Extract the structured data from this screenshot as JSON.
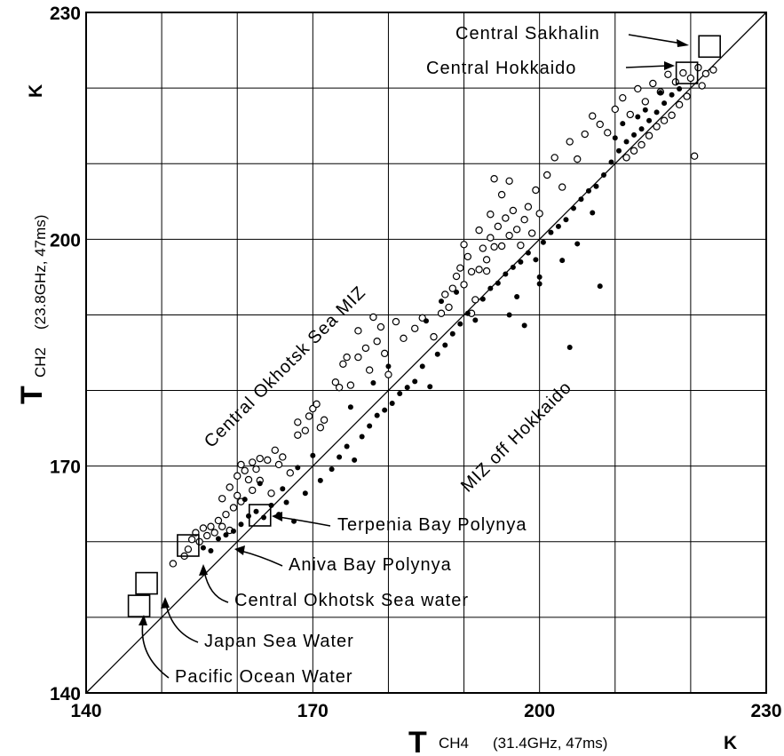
{
  "chart_data": {
    "type": "scatter",
    "xlabel": {
      "symbol": "T",
      "subscript": "CH4",
      "detail": "(31.4GHz, 47ms)",
      "unit": "K"
    },
    "ylabel": {
      "symbol": "T",
      "subscript": "CH2",
      "detail": "(23.8GHz, 47ms)",
      "unit": "K"
    },
    "xlim": [
      140,
      230
    ],
    "ylim": [
      140,
      230
    ],
    "x_ticks": [
      140,
      170,
      200,
      230
    ],
    "y_ticks": [
      140,
      170,
      200,
      230
    ],
    "grid": true,
    "diagonal": {
      "from": [
        140,
        140
      ],
      "to": [
        230,
        230
      ]
    },
    "series": [
      {
        "marker": "open-circle",
        "points": [
          [
            151.5,
            157.1
          ],
          [
            153.0,
            158.1
          ],
          [
            153.5,
            159.0
          ],
          [
            154.0,
            160.3
          ],
          [
            154.5,
            161.2
          ],
          [
            155.0,
            160.0
          ],
          [
            155.5,
            161.8
          ],
          [
            156.0,
            160.8
          ],
          [
            156.5,
            162.0
          ],
          [
            157.0,
            161.2
          ],
          [
            157.5,
            162.8
          ],
          [
            158.0,
            162.0
          ],
          [
            158.5,
            163.6
          ],
          [
            159.0,
            161.5
          ],
          [
            159.5,
            164.5
          ],
          [
            160.0,
            166.1
          ],
          [
            160.0,
            168.7
          ],
          [
            160.5,
            170.2
          ],
          [
            161.0,
            169.4
          ],
          [
            161.5,
            168.2
          ],
          [
            162.0,
            170.5
          ],
          [
            162.5,
            169.6
          ],
          [
            163.0,
            171.0
          ],
          [
            163.0,
            168.1
          ],
          [
            164.0,
            170.8
          ],
          [
            165.0,
            172.1
          ],
          [
            164.5,
            166.4
          ],
          [
            158.0,
            165.7
          ],
          [
            159.0,
            167.2
          ],
          [
            160.5,
            165.3
          ],
          [
            162.0,
            166.8
          ],
          [
            165.5,
            170.2
          ],
          [
            166.0,
            171.2
          ],
          [
            167.0,
            169.1
          ],
          [
            168.0,
            175.8
          ],
          [
            168.0,
            174.1
          ],
          [
            169.0,
            174.7
          ],
          [
            169.5,
            176.6
          ],
          [
            170.0,
            177.6
          ],
          [
            170.5,
            178.2
          ],
          [
            171.0,
            175.1
          ],
          [
            171.5,
            176.1
          ],
          [
            173.0,
            181.1
          ],
          [
            173.5,
            180.4
          ],
          [
            174.0,
            183.5
          ],
          [
            174.5,
            184.4
          ],
          [
            175.0,
            180.7
          ],
          [
            176.0,
            184.4
          ],
          [
            176.0,
            187.9
          ],
          [
            177.0,
            185.6
          ],
          [
            177.5,
            182.7
          ],
          [
            178.0,
            189.7
          ],
          [
            178.5,
            186.5
          ],
          [
            179.0,
            188.4
          ],
          [
            179.5,
            184.9
          ],
          [
            180.0,
            182.1
          ],
          [
            181.0,
            189.1
          ],
          [
            182.0,
            186.9
          ],
          [
            183.5,
            188.2
          ],
          [
            184.5,
            189.6
          ],
          [
            186.0,
            187.1
          ],
          [
            187.0,
            190.2
          ],
          [
            187.5,
            192.7
          ],
          [
            188.0,
            191.0
          ],
          [
            188.5,
            193.5
          ],
          [
            189.0,
            195.1
          ],
          [
            189.5,
            196.2
          ],
          [
            190.0,
            194.0
          ],
          [
            190.5,
            197.7
          ],
          [
            191.0,
            195.7
          ],
          [
            191.5,
            192.0
          ],
          [
            192.0,
            196.0
          ],
          [
            192.5,
            198.8
          ],
          [
            193.0,
            197.3
          ],
          [
            193.5,
            200.2
          ],
          [
            194.0,
            199.0
          ],
          [
            194.5,
            201.7
          ],
          [
            195.0,
            199.1
          ],
          [
            195.5,
            202.8
          ],
          [
            196.0,
            200.5
          ],
          [
            196.5,
            203.8
          ],
          [
            197.0,
            201.3
          ],
          [
            197.5,
            199.2
          ],
          [
            198.0,
            202.6
          ],
          [
            198.5,
            204.3
          ],
          [
            199.0,
            200.8
          ],
          [
            199.5,
            206.5
          ],
          [
            200.0,
            203.4
          ],
          [
            194.0,
            208.0
          ],
          [
            195.0,
            205.9
          ],
          [
            196.0,
            207.7
          ],
          [
            193.5,
            203.3
          ],
          [
            192.0,
            201.2
          ],
          [
            190.0,
            199.3
          ],
          [
            191.0,
            190.2
          ],
          [
            193.0,
            195.8
          ],
          [
            201.0,
            208.5
          ],
          [
            202.0,
            210.8
          ],
          [
            203.0,
            206.9
          ],
          [
            204.0,
            212.9
          ],
          [
            205.0,
            210.6
          ],
          [
            206.0,
            213.9
          ],
          [
            207.0,
            216.3
          ],
          [
            208.0,
            215.2
          ],
          [
            209.0,
            214.1
          ],
          [
            210.0,
            217.2
          ],
          [
            211.0,
            218.7
          ],
          [
            212.0,
            216.5
          ],
          [
            213.0,
            219.9
          ],
          [
            214.0,
            218.2
          ],
          [
            215.0,
            220.6
          ],
          [
            216.0,
            219.5
          ],
          [
            217.0,
            221.8
          ],
          [
            218.0,
            220.8
          ],
          [
            219.0,
            222.0
          ],
          [
            220.0,
            221.3
          ],
          [
            221.0,
            222.7
          ],
          [
            222.0,
            221.9
          ],
          [
            223.0,
            222.4
          ],
          [
            221.5,
            220.3
          ],
          [
            219.5,
            218.9
          ],
          [
            218.5,
            217.8
          ],
          [
            217.5,
            216.4
          ],
          [
            216.5,
            215.7
          ],
          [
            215.5,
            214.9
          ],
          [
            214.5,
            213.7
          ],
          [
            220.5,
            211.0
          ],
          [
            213.5,
            212.5
          ],
          [
            212.5,
            211.7
          ],
          [
            211.5,
            210.8
          ]
        ]
      },
      {
        "marker": "filled-dot",
        "points": [
          [
            155.5,
            159.2
          ],
          [
            156.5,
            158.8
          ],
          [
            157.5,
            160.4
          ],
          [
            158.5,
            160.9
          ],
          [
            159.5,
            161.4
          ],
          [
            160.5,
            162.3
          ],
          [
            161.5,
            163.4
          ],
          [
            162.5,
            164.0
          ],
          [
            163.5,
            163.2
          ],
          [
            164.5,
            164.8
          ],
          [
            165.5,
            163.6
          ],
          [
            166.5,
            165.2
          ],
          [
            167.5,
            162.7
          ],
          [
            163.0,
            167.7
          ],
          [
            161.0,
            165.6
          ],
          [
            166.0,
            167.0
          ],
          [
            169.0,
            166.4
          ],
          [
            171.0,
            168.1
          ],
          [
            172.5,
            169.6
          ],
          [
            173.5,
            171.2
          ],
          [
            174.5,
            172.6
          ],
          [
            175.5,
            170.8
          ],
          [
            176.5,
            173.9
          ],
          [
            177.5,
            175.3
          ],
          [
            178.5,
            176.7
          ],
          [
            179.5,
            177.4
          ],
          [
            180.5,
            178.3
          ],
          [
            181.5,
            179.6
          ],
          [
            182.5,
            180.4
          ],
          [
            183.5,
            181.2
          ],
          [
            184.5,
            183.2
          ],
          [
            185.5,
            180.5
          ],
          [
            186.5,
            184.8
          ],
          [
            187.5,
            186.0
          ],
          [
            188.5,
            187.5
          ],
          [
            189.5,
            188.8
          ],
          [
            190.5,
            190.2
          ],
          [
            191.5,
            189.3
          ],
          [
            192.5,
            192.1
          ],
          [
            193.5,
            193.5
          ],
          [
            194.5,
            194.2
          ],
          [
            195.5,
            195.4
          ],
          [
            196.5,
            196.3
          ],
          [
            197.5,
            197.0
          ],
          [
            198.5,
            198.2
          ],
          [
            199.5,
            197.3
          ],
          [
            200.5,
            199.6
          ],
          [
            201.5,
            200.9
          ],
          [
            202.5,
            201.7
          ],
          [
            203.5,
            202.6
          ],
          [
            204.5,
            204.1
          ],
          [
            205.5,
            205.3
          ],
          [
            206.5,
            206.4
          ],
          [
            207.5,
            207.0
          ],
          [
            208.5,
            208.5
          ],
          [
            209.5,
            210.2
          ],
          [
            210.5,
            211.7
          ],
          [
            211.5,
            212.9
          ],
          [
            212.5,
            213.8
          ],
          [
            213.5,
            214.6
          ],
          [
            214.5,
            215.7
          ],
          [
            215.5,
            216.8
          ],
          [
            216.5,
            218.0
          ],
          [
            217.5,
            219.1
          ],
          [
            218.5,
            219.9
          ],
          [
            210.0,
            213.4
          ],
          [
            211.0,
            215.3
          ],
          [
            213.0,
            216.2
          ],
          [
            214.0,
            217.1
          ],
          [
            216.0,
            219.4
          ],
          [
            185.0,
            189.2
          ],
          [
            187.0,
            191.8
          ],
          [
            189.0,
            193.0
          ],
          [
            180.0,
            183.2
          ],
          [
            178.0,
            181.0
          ],
          [
            175.0,
            177.8
          ],
          [
            170.0,
            171.4
          ],
          [
            168.0,
            169.8
          ],
          [
            196.0,
            190.0
          ],
          [
            197.0,
            192.4
          ],
          [
            198.0,
            188.6
          ],
          [
            200.0,
            195.0
          ],
          [
            203.0,
            197.2
          ],
          [
            205.0,
            199.4
          ],
          [
            207.0,
            203.5
          ],
          [
            208.0,
            193.8
          ],
          [
            204.0,
            185.7
          ],
          [
            200.0,
            194.1
          ]
        ]
      }
    ],
    "boxes": [
      {
        "x": 148,
        "y": 154.5
      },
      {
        "x": 147,
        "y": 151.5
      },
      {
        "x": 153.5,
        "y": 159.5
      },
      {
        "x": 163,
        "y": 163.5
      },
      {
        "x": 219.5,
        "y": 222
      },
      {
        "x": 222.5,
        "y": 225.5
      }
    ],
    "annotations": [
      {
        "text": "Central Sakhalin",
        "target": [
          222.5,
          225.5
        ]
      },
      {
        "text": "Central Hokkaido",
        "target": [
          219.5,
          222
        ]
      },
      {
        "text": "Terpenia Bay Polynya",
        "target": [
          163,
          163.5
        ]
      },
      {
        "text": "Aniva Bay Polynya",
        "target": [
          155.5,
          159.5
        ]
      },
      {
        "text": "Central Okhotsk Sea water",
        "target": [
          153.5,
          159.5
        ]
      },
      {
        "text": "Japan Sea Water",
        "target": [
          148,
          154.5
        ]
      },
      {
        "text": "Pacific Ocean Water",
        "target": [
          147,
          151.5
        ]
      }
    ],
    "region_labels": [
      {
        "text": "Central Okhotsk Sea MIZ",
        "angle": -45
      },
      {
        "text": "MIZ off Hokkaido",
        "angle": -45
      }
    ]
  }
}
